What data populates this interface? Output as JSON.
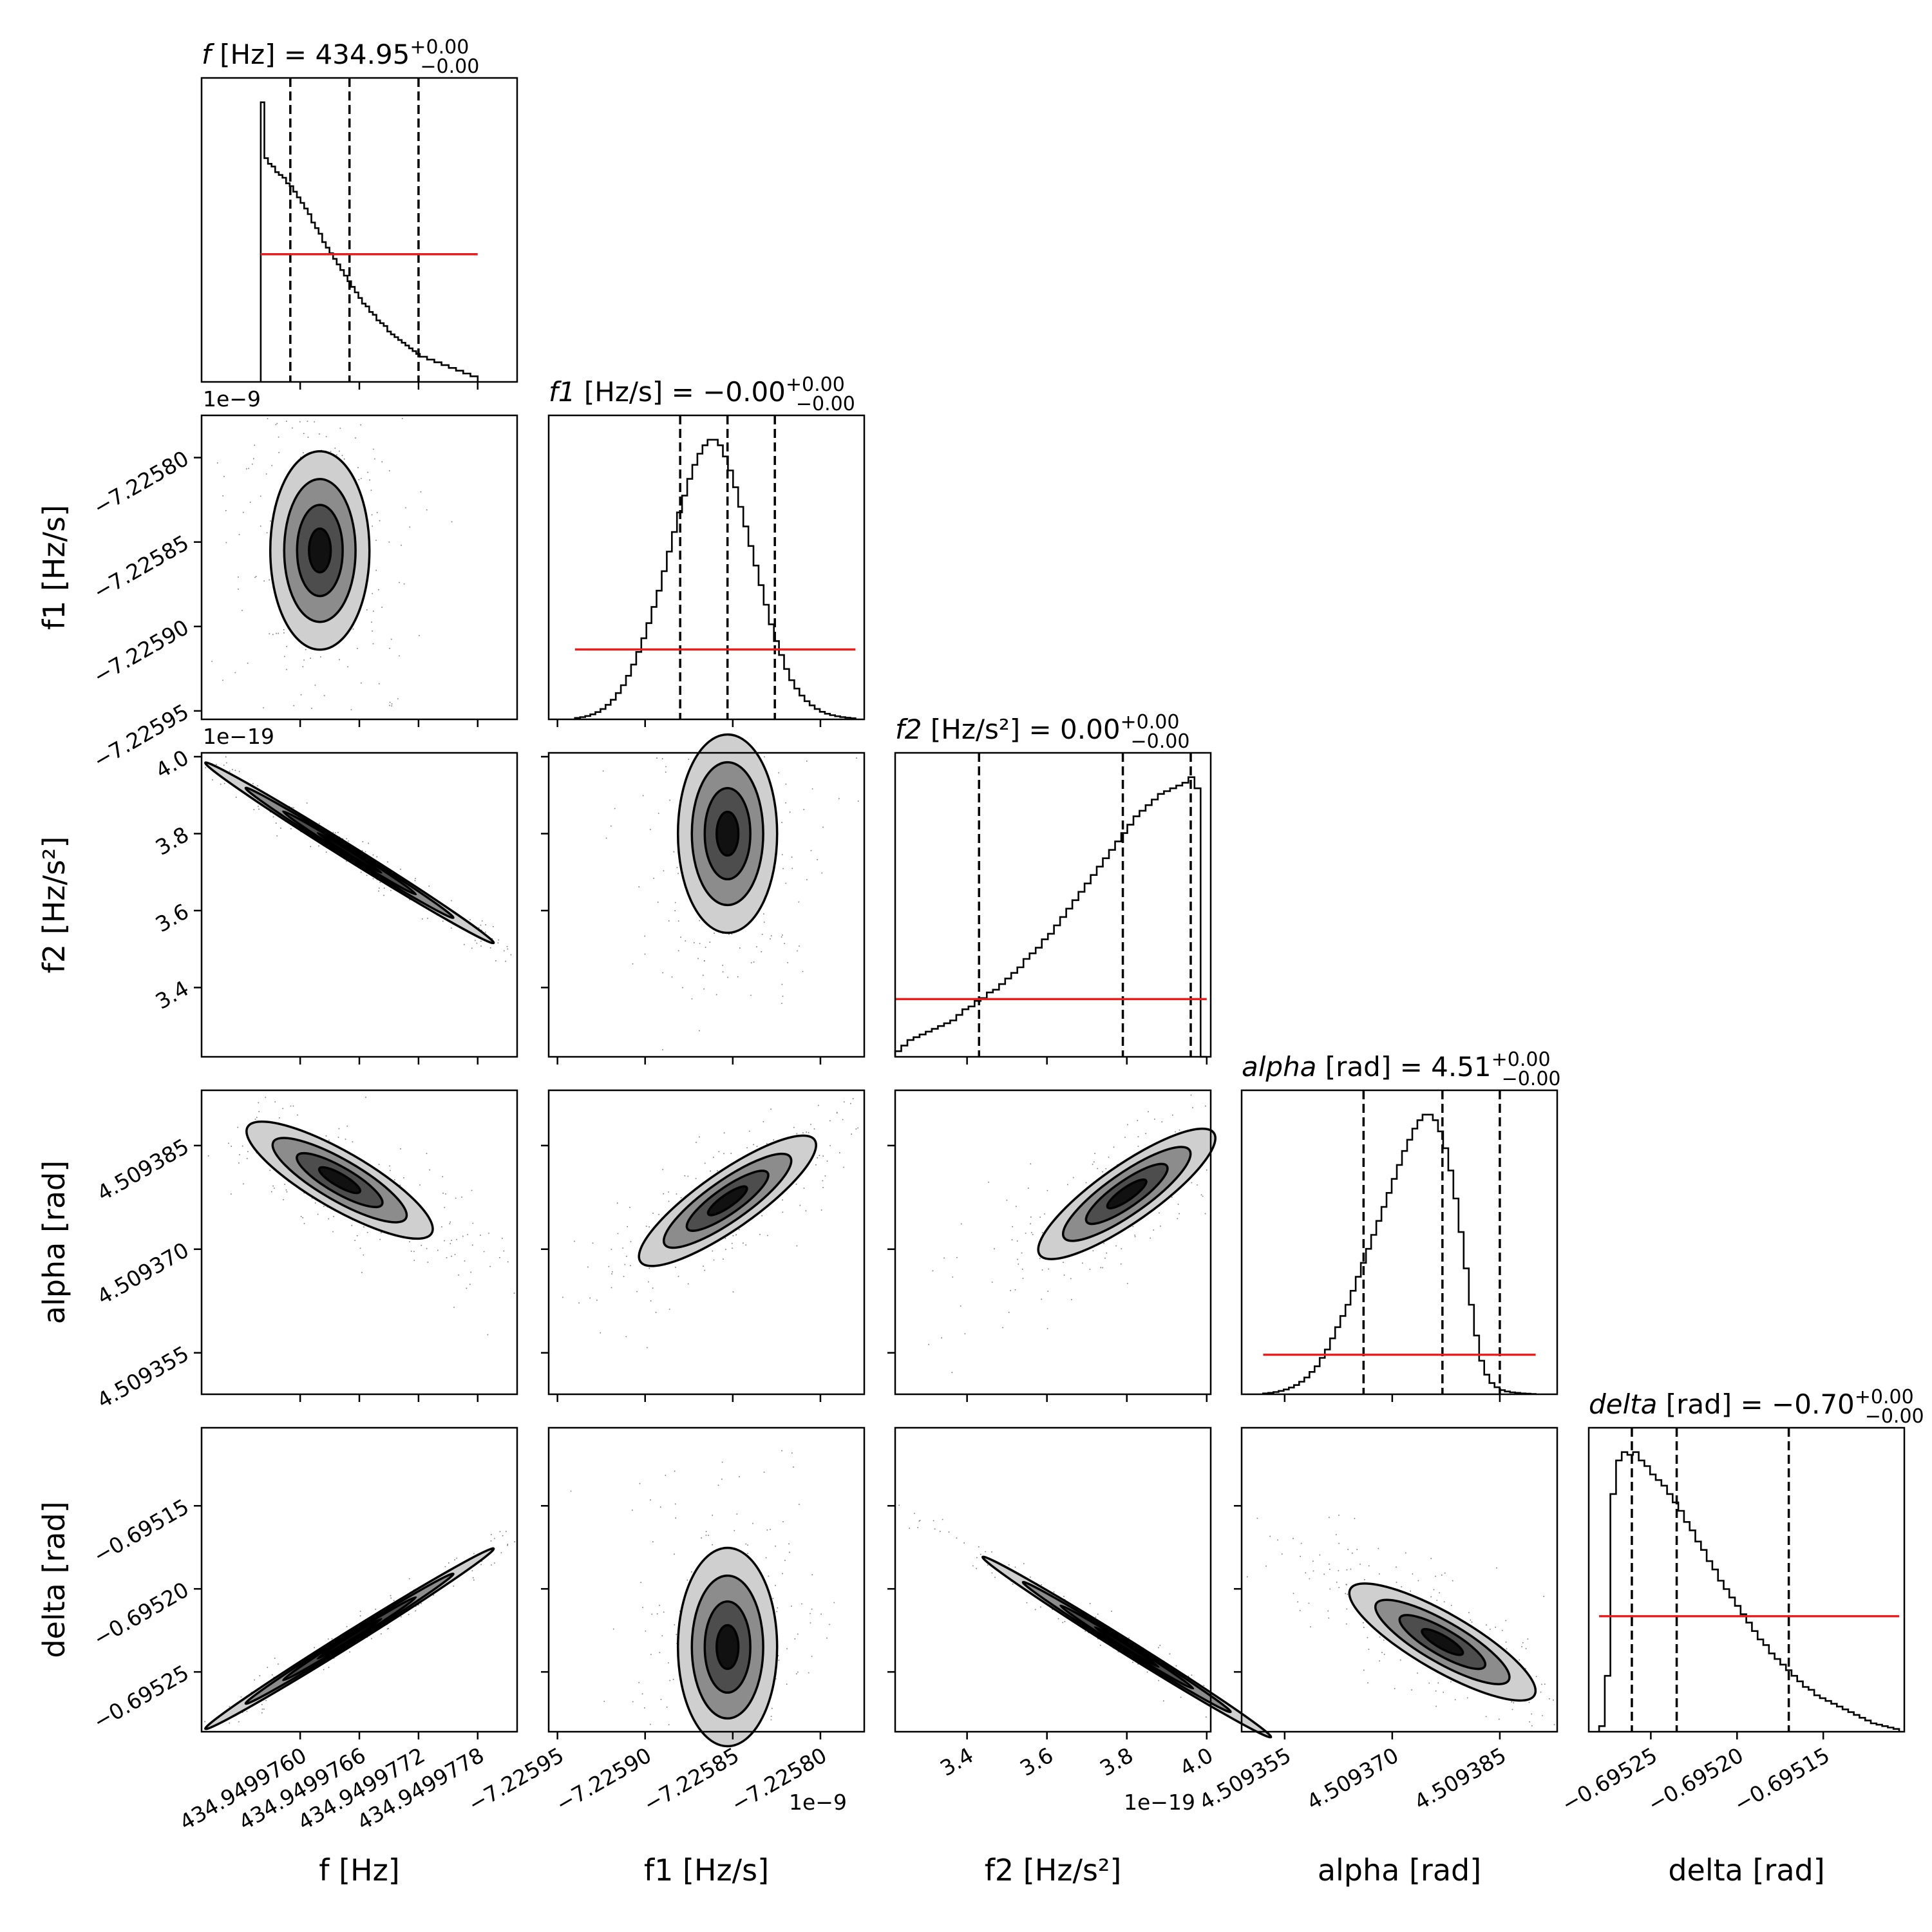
{
  "chart_data": {
    "type": "corner",
    "parameters": [
      "f",
      "f1",
      "f2",
      "alpha",
      "delta"
    ],
    "axis_labels": [
      "f [Hz]",
      "f1 [Hz/s]",
      "f2 [Hz/s²]",
      "alpha [rad]",
      "delta [rad]"
    ],
    "titles": [
      "f [Hz] = 434.95 +0.00 −0.00",
      "f1 [Hz/s] = −0.00 +0.00 −0.00",
      "f2 [Hz/s²] = 0.00 +0.00 −0.00",
      "alpha [rad] = 4.51 +0.00 −0.00",
      "delta [rad] = −0.70 +0.00 −0.00"
    ],
    "title_parts": [
      {
        "name": "f",
        "unit": "[Hz]",
        "value": "434.95",
        "plus": "+0.00",
        "minus": "−0.00"
      },
      {
        "name": "f1",
        "unit": "[Hz/s]",
        "value": "−0.00",
        "plus": "+0.00",
        "minus": "−0.00"
      },
      {
        "name": "f2",
        "unit": "[Hz/s²]",
        "value": "0.00",
        "plus": "+0.00",
        "minus": "−0.00"
      },
      {
        "name": "alpha",
        "unit": "[rad]",
        "value": "4.51",
        "plus": "+0.00",
        "minus": "−0.00"
      },
      {
        "name": "delta",
        "unit": "[rad]",
        "value": "−0.70",
        "plus": "+0.00",
        "minus": "−0.00"
      }
    ],
    "axis_ranges": {
      "f": [
        434.949975,
        434.9499782
      ],
      "f1": [
        -7.225955e-09,
        -7.225775e-09
      ],
      "f2": [
        3.22e-19,
        4.01e-19
      ],
      "alpha": [
        4.509349,
        4.509393
      ],
      "delta": [
        -0.695286,
        -0.695103
      ]
    },
    "tick_labels": {
      "f": [
        "434.9499760",
        "434.9499766",
        "434.9499772",
        "434.9499778"
      ],
      "f1": [
        "−7.22595",
        "−7.22590",
        "−7.22585",
        "−7.22580"
      ],
      "f2": [
        "3.4",
        "3.6",
        "3.8",
        "4.0"
      ],
      "alpha": [
        "4.509355",
        "4.509370",
        "4.509385"
      ],
      "delta": [
        "−0.69525",
        "−0.69520",
        "−0.69515"
      ]
    },
    "offset_texts": {
      "f1": "1e−9",
      "f2": "1e−19"
    },
    "histograms": {
      "f": [
        1.0,
        0.8,
        0.78,
        0.77,
        0.75,
        0.74,
        0.73,
        0.71,
        0.7,
        0.68,
        0.66,
        0.64,
        0.62,
        0.6,
        0.57,
        0.55,
        0.53,
        0.5,
        0.48,
        0.46,
        0.44,
        0.42,
        0.4,
        0.38,
        0.36,
        0.34,
        0.32,
        0.3,
        0.28,
        0.27,
        0.25,
        0.24,
        0.22,
        0.21,
        0.2,
        0.18,
        0.17,
        0.16,
        0.15,
        0.14,
        0.13,
        0.12,
        0.11,
        0.1,
        0.09,
        0.09,
        0.08,
        0.08,
        0.07,
        0.07,
        0.06,
        0.06,
        0.05,
        0.05,
        0.04,
        0.04,
        0.03,
        0.03,
        0.02,
        0.02
      ],
      "f1": [
        0.005,
        0.008,
        0.012,
        0.018,
        0.026,
        0.037,
        0.052,
        0.07,
        0.094,
        0.122,
        0.156,
        0.196,
        0.241,
        0.29,
        0.344,
        0.402,
        0.46,
        0.53,
        0.6,
        0.67,
        0.74,
        0.8,
        0.86,
        0.91,
        0.95,
        0.98,
        1.0,
        1.0,
        0.98,
        0.94,
        0.89,
        0.83,
        0.76,
        0.69,
        0.62,
        0.55,
        0.48,
        0.41,
        0.34,
        0.28,
        0.23,
        0.18,
        0.14,
        0.11,
        0.085,
        0.065,
        0.05,
        0.037,
        0.027,
        0.02,
        0.015,
        0.011,
        0.008,
        0.006,
        0.004
      ],
      "f2": [
        0.02,
        0.04,
        0.06,
        0.07,
        0.08,
        0.09,
        0.1,
        0.11,
        0.12,
        0.13,
        0.15,
        0.17,
        0.18,
        0.2,
        0.21,
        0.23,
        0.24,
        0.26,
        0.28,
        0.3,
        0.32,
        0.35,
        0.37,
        0.39,
        0.42,
        0.44,
        0.47,
        0.5,
        0.53,
        0.56,
        0.59,
        0.62,
        0.65,
        0.68,
        0.71,
        0.74,
        0.77,
        0.8,
        0.83,
        0.86,
        0.88,
        0.9,
        0.92,
        0.94,
        0.95,
        0.96,
        0.97,
        0.98,
        1.0,
        0.96,
        0.0
      ],
      "alpha": [
        0.003,
        0.005,
        0.008,
        0.012,
        0.017,
        0.024,
        0.033,
        0.045,
        0.06,
        0.08,
        0.1,
        0.13,
        0.16,
        0.2,
        0.24,
        0.28,
        0.32,
        0.37,
        0.42,
        0.47,
        0.52,
        0.57,
        0.62,
        0.67,
        0.72,
        0.77,
        0.82,
        0.87,
        0.91,
        0.95,
        0.98,
        1.0,
        1.0,
        0.98,
        0.94,
        0.88,
        0.8,
        0.7,
        0.58,
        0.45,
        0.32,
        0.21,
        0.12,
        0.07,
        0.04,
        0.025,
        0.015,
        0.01,
        0.007,
        0.005,
        0.003,
        0.002,
        0.001
      ],
      "delta": [
        0.02,
        0.2,
        0.85,
        0.97,
        1.0,
        0.99,
        1.0,
        0.97,
        0.95,
        0.92,
        0.9,
        0.88,
        0.85,
        0.82,
        0.79,
        0.75,
        0.72,
        0.68,
        0.65,
        0.61,
        0.58,
        0.54,
        0.51,
        0.48,
        0.45,
        0.42,
        0.39,
        0.36,
        0.33,
        0.31,
        0.28,
        0.26,
        0.24,
        0.22,
        0.2,
        0.18,
        0.16,
        0.15,
        0.13,
        0.12,
        0.11,
        0.1,
        0.09,
        0.08,
        0.07,
        0.06,
        0.05,
        0.04,
        0.03,
        0.025,
        0.02,
        0.015,
        0.01
      ]
    },
    "quantiles": {
      "f": [
        434.9499759,
        434.9499765,
        434.9499772
      ],
      "f1": [
        -7.22588e-09,
        -7.225853e-09,
        -7.225826e-09
      ],
      "f2": [
        3.43e-19,
        3.79e-19,
        3.96e-19
      ],
      "alpha": [
        4.509366,
        4.509377,
        4.509385
      ],
      "delta": [
        -0.695261,
        -0.695235,
        -0.69517
      ]
    },
    "red_line_level": {
      "f": 0.42,
      "f1": 0.23,
      "f2": 0.19,
      "alpha": 0.13,
      "delta": 0.38
    },
    "red_line_span": {
      "f": [
        434.9499756,
        434.9499778
      ],
      "f1": [
        -7.22594e-09,
        -7.22578e-09
      ],
      "f2": [
        3.22e-19,
        4e-19
      ],
      "alpha": [
        4.509352,
        4.50939
      ],
      "delta": [
        -0.69528,
        -0.695106
      ]
    },
    "joint_2d": [
      {
        "x": "f",
        "y": "f1",
        "center": [
          434.9499762,
          -7.225855e-09
        ],
        "spread": [
          6e-07,
          1.5e-17
        ],
        "correlation": 0.0
      },
      {
        "x": "f",
        "y": "f2",
        "center": [
          434.9499765,
          3.75e-19
        ],
        "correlation": -1.0
      },
      {
        "x": "f",
        "y": "alpha",
        "center": [
          434.9499764,
          4.50938
        ],
        "correlation": -0.9
      },
      {
        "x": "f",
        "y": "delta",
        "center": [
          434.9499765,
          -0.69523
        ],
        "correlation": 1.0
      },
      {
        "x": "f1",
        "y": "f2",
        "center": [
          -7.225853e-09,
          3.8e-19
        ],
        "correlation": 0.0
      },
      {
        "x": "f1",
        "y": "alpha",
        "center": [
          -7.225853e-09,
          4.509377
        ],
        "correlation": 0.85
      },
      {
        "x": "f1",
        "y": "delta",
        "center": [
          -7.225853e-09,
          -0.695235
        ],
        "correlation": 0.0
      },
      {
        "x": "f2",
        "y": "alpha",
        "center": [
          3.8e-19,
          4.509378
        ],
        "correlation": 0.9
      },
      {
        "x": "f2",
        "y": "delta",
        "center": [
          3.8e-19,
          -0.695235
        ],
        "correlation": -1.0
      },
      {
        "x": "alpha",
        "y": "delta",
        "center": [
          4.509377,
          -0.695232
        ],
        "correlation": -0.8
      }
    ],
    "colors": {
      "histogram": "#000000",
      "quantile": "#000000",
      "red_line": "#d62728",
      "contour_fills": [
        "#cfcfcf",
        "#8c8c8c",
        "#4d4d4d",
        "#111111"
      ],
      "scatter": "#777777"
    }
  }
}
